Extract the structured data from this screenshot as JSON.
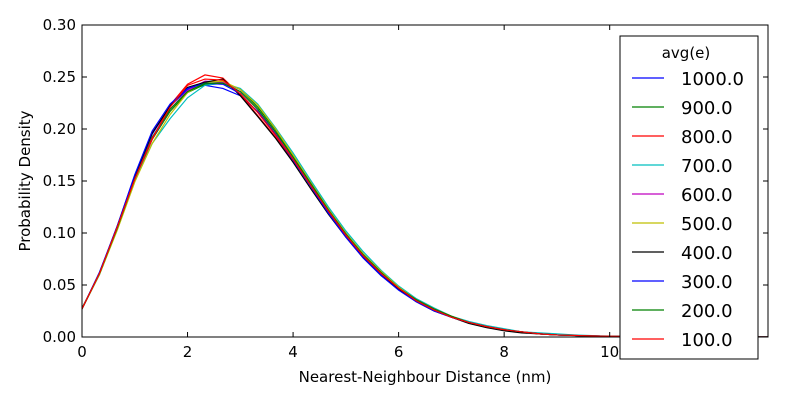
{
  "chart_data": {
    "type": "line",
    "title": "",
    "xlabel": "Nearest-Neighbour Distance (nm)",
    "ylabel": "Probability Density",
    "xlim": [
      0,
      13
    ],
    "ylim": [
      0,
      0.3
    ],
    "xticks": [
      0,
      2,
      4,
      6,
      8,
      10
    ],
    "xtick_labels": [
      "0",
      "2",
      "4",
      "6",
      "8",
      "10"
    ],
    "yticks": [
      0.0,
      0.05,
      0.1,
      0.15,
      0.2,
      0.25,
      0.3
    ],
    "ytick_labels": [
      "0.00",
      "0.05",
      "0.10",
      "0.15",
      "0.20",
      "0.25",
      "0.30"
    ],
    "grid": false,
    "legend": {
      "title": "avg(e)",
      "position": "right"
    },
    "x": [
      0,
      0.33,
      0.67,
      1.0,
      1.33,
      1.67,
      2.0,
      2.33,
      2.67,
      3.0,
      3.33,
      3.67,
      4.0,
      4.33,
      4.67,
      5.0,
      5.33,
      5.67,
      6.0,
      6.33,
      6.67,
      7.0,
      7.33,
      7.67,
      8.0,
      8.33,
      8.67,
      9.0,
      9.33,
      9.67,
      10.0,
      10.33,
      10.67,
      11.0,
      11.33,
      11.67,
      12.0,
      12.33,
      12.67,
      13.0
    ],
    "series": [
      {
        "name": "1000.0",
        "color": "#0000ff",
        "values": [
          0.027,
          0.062,
          0.106,
          0.153,
          0.195,
          0.222,
          0.238,
          0.242,
          0.239,
          0.232,
          0.217,
          0.195,
          0.171,
          0.146,
          0.12,
          0.097,
          0.077,
          0.06,
          0.046,
          0.035,
          0.026,
          0.019,
          0.014,
          0.01,
          0.007,
          0.005,
          0.003,
          0.002,
          0.0015,
          0.001,
          0.0007,
          0.0005,
          0.0003,
          0.0002,
          0.0001,
          0.0001,
          0.0001,
          0.0,
          0.0,
          0.0
        ]
      },
      {
        "name": "900.0",
        "color": "#008000",
        "values": [
          0.028,
          0.06,
          0.104,
          0.15,
          0.19,
          0.217,
          0.235,
          0.243,
          0.245,
          0.238,
          0.221,
          0.199,
          0.174,
          0.149,
          0.123,
          0.1,
          0.08,
          0.062,
          0.048,
          0.036,
          0.027,
          0.02,
          0.014,
          0.01,
          0.007,
          0.005,
          0.003,
          0.002,
          0.0015,
          0.001,
          0.0007,
          0.0005,
          0.0003,
          0.0002,
          0.0001,
          0.0001,
          0.0001,
          0.0,
          0.0,
          0.0
        ]
      },
      {
        "name": "800.0",
        "color": "#ff0000",
        "values": [
          0.027,
          0.061,
          0.106,
          0.152,
          0.19,
          0.223,
          0.243,
          0.252,
          0.249,
          0.233,
          0.213,
          0.192,
          0.17,
          0.146,
          0.121,
          0.098,
          0.078,
          0.061,
          0.047,
          0.035,
          0.026,
          0.019,
          0.014,
          0.01,
          0.007,
          0.005,
          0.003,
          0.002,
          0.0015,
          0.001,
          0.0007,
          0.0005,
          0.0003,
          0.0002,
          0.0001,
          0.0001,
          0.0001,
          0.0,
          0.0,
          0.0
        ]
      },
      {
        "name": "700.0",
        "color": "#00bfbf",
        "values": [
          0.027,
          0.06,
          0.104,
          0.15,
          0.186,
          0.21,
          0.23,
          0.242,
          0.244,
          0.239,
          0.224,
          0.201,
          0.177,
          0.151,
          0.125,
          0.102,
          0.082,
          0.064,
          0.049,
          0.037,
          0.028,
          0.02,
          0.015,
          0.011,
          0.008,
          0.005,
          0.004,
          0.003,
          0.002,
          0.0013,
          0.0009,
          0.0006,
          0.0004,
          0.0003,
          0.0002,
          0.0001,
          0.0001,
          0.0,
          0.0,
          0.0
        ]
      },
      {
        "name": "600.0",
        "color": "#bf00bf",
        "values": [
          0.027,
          0.061,
          0.105,
          0.152,
          0.191,
          0.219,
          0.237,
          0.246,
          0.245,
          0.236,
          0.219,
          0.197,
          0.172,
          0.147,
          0.122,
          0.099,
          0.079,
          0.062,
          0.047,
          0.036,
          0.027,
          0.02,
          0.014,
          0.01,
          0.007,
          0.005,
          0.003,
          0.002,
          0.0015,
          0.001,
          0.0007,
          0.0005,
          0.0003,
          0.0002,
          0.0001,
          0.0001,
          0.0001,
          0.0,
          0.0,
          0.0
        ]
      },
      {
        "name": "500.0",
        "color": "#bfbf00",
        "values": [
          0.027,
          0.06,
          0.103,
          0.149,
          0.186,
          0.214,
          0.235,
          0.245,
          0.246,
          0.238,
          0.223,
          0.2,
          0.175,
          0.149,
          0.123,
          0.1,
          0.08,
          0.063,
          0.048,
          0.036,
          0.027,
          0.02,
          0.014,
          0.01,
          0.007,
          0.005,
          0.003,
          0.002,
          0.0015,
          0.001,
          0.0007,
          0.0005,
          0.0003,
          0.0002,
          0.0001,
          0.0001,
          0.0001,
          0.0,
          0.0,
          0.0
        ]
      },
      {
        "name": "400.0",
        "color": "#000000",
        "values": [
          0.027,
          0.061,
          0.107,
          0.155,
          0.196,
          0.222,
          0.24,
          0.245,
          0.248,
          0.232,
          0.212,
          0.191,
          0.168,
          0.143,
          0.118,
          0.096,
          0.076,
          0.059,
          0.046,
          0.034,
          0.025,
          0.019,
          0.013,
          0.009,
          0.006,
          0.004,
          0.003,
          0.002,
          0.0014,
          0.001,
          0.0007,
          0.0005,
          0.0003,
          0.0002,
          0.0001,
          0.0001,
          0.0001,
          0.0,
          0.0,
          0.0
        ]
      },
      {
        "name": "300.0",
        "color": "#0000ff",
        "values": [
          0.027,
          0.062,
          0.107,
          0.156,
          0.198,
          0.224,
          0.239,
          0.244,
          0.243,
          0.234,
          0.216,
          0.194,
          0.17,
          0.145,
          0.119,
          0.096,
          0.076,
          0.059,
          0.045,
          0.034,
          0.025,
          0.019,
          0.014,
          0.01,
          0.007,
          0.005,
          0.003,
          0.002,
          0.0015,
          0.001,
          0.0007,
          0.0005,
          0.0003,
          0.0002,
          0.0001,
          0.0001,
          0.0001,
          0.0,
          0.0,
          0.0
        ]
      },
      {
        "name": "200.0",
        "color": "#008000",
        "values": [
          0.027,
          0.061,
          0.105,
          0.152,
          0.192,
          0.219,
          0.236,
          0.244,
          0.244,
          0.236,
          0.219,
          0.197,
          0.173,
          0.148,
          0.122,
          0.099,
          0.079,
          0.062,
          0.047,
          0.036,
          0.027,
          0.02,
          0.014,
          0.01,
          0.007,
          0.005,
          0.003,
          0.002,
          0.0015,
          0.001,
          0.0007,
          0.0005,
          0.0003,
          0.0002,
          0.0001,
          0.0001,
          0.0001,
          0.0,
          0.0,
          0.0
        ]
      },
      {
        "name": "100.0",
        "color": "#ff0000",
        "values": [
          0.027,
          0.061,
          0.106,
          0.152,
          0.191,
          0.221,
          0.242,
          0.248,
          0.247,
          0.234,
          0.216,
          0.194,
          0.171,
          0.146,
          0.121,
          0.098,
          0.078,
          0.061,
          0.047,
          0.035,
          0.026,
          0.019,
          0.014,
          0.01,
          0.007,
          0.005,
          0.003,
          0.002,
          0.0015,
          0.001,
          0.0007,
          0.0005,
          0.0003,
          0.0002,
          0.0001,
          0.0001,
          0.0001,
          0.0,
          0.0,
          0.0
        ]
      }
    ]
  }
}
